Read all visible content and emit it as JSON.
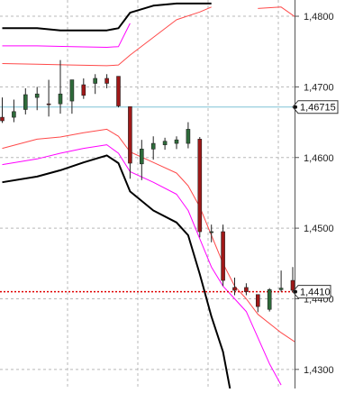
{
  "chart_data": {
    "type": "candlestick",
    "title": "",
    "xlabel": "",
    "ylabel": "",
    "ylim": [
      1.4273,
      1.4823
    ],
    "y_ticks": [
      "1,4800",
      "1,4700",
      "1,4600",
      "1,4500",
      "1,4400",
      "1,4300"
    ],
    "y_tick_values": [
      1.48,
      1.47,
      1.46,
      1.45,
      1.44,
      1.43
    ],
    "grid": true,
    "horizontal_levels": [
      {
        "value": 1.46715,
        "label": "1,46715",
        "color": "#7fc3d6",
        "style": "solid"
      },
      {
        "value": 1.441,
        "label": "1,4410",
        "color": "#e00000",
        "style": "dotted"
      }
    ],
    "colors": {
      "bull_body": "#2e6b3a",
      "bear_body": "#a01818",
      "wick": "#222222",
      "band_outer": "#000000",
      "band_middle": "#ff00ff",
      "band_inner": "#ff4a4a",
      "grid": "#b8b8b8",
      "axis": "#555555"
    },
    "candles": [
      {
        "open": 1.4657,
        "high": 1.4685,
        "low": 1.4649,
        "close": 1.4652
      },
      {
        "open": 1.4657,
        "high": 1.4682,
        "low": 1.465,
        "close": 1.4665
      },
      {
        "open": 1.4668,
        "high": 1.4698,
        "low": 1.4661,
        "close": 1.4689
      },
      {
        "open": 1.4685,
        "high": 1.47,
        "low": 1.4667,
        "close": 1.469
      },
      {
        "open": 1.4676,
        "high": 1.471,
        "low": 1.4658,
        "close": 1.4675
      },
      {
        "open": 1.4676,
        "high": 1.4738,
        "low": 1.4662,
        "close": 1.469
      },
      {
        "open": 1.468,
        "high": 1.4706,
        "low": 1.4662,
        "close": 1.471
      },
      {
        "open": 1.4703,
        "high": 1.4712,
        "low": 1.4683,
        "close": 1.4688
      },
      {
        "open": 1.4705,
        "high": 1.4718,
        "low": 1.469,
        "close": 1.4712
      },
      {
        "open": 1.4712,
        "high": 1.4718,
        "low": 1.4698,
        "close": 1.4705
      },
      {
        "open": 1.4715,
        "high": 1.4715,
        "low": 1.4671,
        "close": 1.4673
      },
      {
        "open": 1.4672,
        "high": 1.4672,
        "low": 1.457,
        "close": 1.4592
      },
      {
        "open": 1.4591,
        "high": 1.4625,
        "low": 1.4568,
        "close": 1.4612
      },
      {
        "open": 1.4612,
        "high": 1.463,
        "low": 1.4597,
        "close": 1.462
      },
      {
        "open": 1.4618,
        "high": 1.4628,
        "low": 1.4611,
        "close": 1.4623
      },
      {
        "open": 1.462,
        "high": 1.463,
        "low": 1.4612,
        "close": 1.4625
      },
      {
        "open": 1.462,
        "high": 1.465,
        "low": 1.4613,
        "close": 1.464
      },
      {
        "open": 1.4626,
        "high": 1.4629,
        "low": 1.4487,
        "close": 1.4495
      },
      {
        "open": 1.4495,
        "high": 1.4505,
        "low": 1.448,
        "close": 1.4495
      },
      {
        "open": 1.4495,
        "high": 1.4505,
        "low": 1.4418,
        "close": 1.4426
      },
      {
        "open": 1.4416,
        "high": 1.443,
        "low": 1.4405,
        "close": 1.4412
      },
      {
        "open": 1.4416,
        "high": 1.4422,
        "low": 1.4405,
        "close": 1.441
      },
      {
        "open": 1.4406,
        "high": 1.4406,
        "low": 1.4381,
        "close": 1.4389
      },
      {
        "open": 1.4385,
        "high": 1.4415,
        "low": 1.4382,
        "close": 1.4413
      },
      {
        "open": 1.4413,
        "high": 1.444,
        "low": 1.441,
        "close": 1.4415
      },
      {
        "open": 1.4426,
        "high": 1.4445,
        "low": 1.441,
        "close": 1.4412
      },
      {
        "open": 1.4412,
        "high": 1.4412,
        "low": 1.4328,
        "close": 1.4378
      },
      {
        "open": 1.4383,
        "high": 1.4394,
        "low": 1.4381,
        "close": 1.4387
      },
      {
        "open": 1.4376,
        "high": 1.4391,
        "low": 1.4354,
        "close": 1.439
      },
      {
        "open": 1.4386,
        "high": 1.4413,
        "low": 1.4383,
        "close": 1.441
      }
    ],
    "bands": [
      {
        "name": "",
        "color": "#000000",
        "width": 2,
        "points": [
          [
            0,
            1.4783
          ],
          [
            3,
            1.4783
          ],
          [
            5,
            1.478
          ],
          [
            7,
            1.478
          ],
          [
            9,
            1.478
          ],
          [
            10,
            1.4783
          ],
          [
            11,
            1.4805
          ],
          [
            13,
            1.4815
          ],
          [
            15,
            1.4818
          ],
          [
            17,
            1.4818
          ],
          [
            18,
            1.4818
          ]
        ]
      },
      {
        "name": "",
        "color": "#ff00ff",
        "width": 1,
        "points": [
          [
            0,
            1.4758
          ],
          [
            3,
            1.4758
          ],
          [
            6,
            1.4757
          ],
          [
            9,
            1.4756
          ],
          [
            10,
            1.4757
          ],
          [
            11,
            1.479
          ]
        ]
      },
      {
        "name": "",
        "color": "#ff00ff",
        "width": 1,
        "points": [
          [
            28.7,
            1.48
          ],
          [
            29.2,
            1.4775
          ]
        ]
      },
      {
        "name": "",
        "color": "#ff4a4a",
        "width": 1,
        "points": [
          [
            0,
            1.4733
          ],
          [
            3,
            1.4732
          ],
          [
            6,
            1.4731
          ],
          [
            9,
            1.473
          ],
          [
            10,
            1.4731
          ],
          [
            11,
            1.4745
          ],
          [
            13,
            1.477
          ],
          [
            15,
            1.4795
          ],
          [
            17,
            1.4806
          ],
          [
            18,
            1.4813
          ]
        ]
      },
      {
        "name": "",
        "color": "#ff4a4a",
        "width": 1,
        "points": [
          [
            22,
            1.4811
          ],
          [
            24,
            1.4813
          ],
          [
            26,
            1.479
          ],
          [
            28,
            1.4748
          ],
          [
            30,
            1.47
          ]
        ]
      },
      {
        "name": "",
        "color": "#ff4a4a",
        "width": 1,
        "points": [
          [
            0,
            1.4613
          ],
          [
            3,
            1.4626
          ],
          [
            5,
            1.4629
          ],
          [
            7,
            1.4635
          ],
          [
            9,
            1.464
          ],
          [
            10,
            1.463
          ],
          [
            11,
            1.4608
          ],
          [
            13,
            1.4593
          ],
          [
            15,
            1.4578
          ],
          [
            16,
            1.456
          ],
          [
            17,
            1.453
          ],
          [
            18,
            1.449
          ],
          [
            19,
            1.445
          ],
          [
            20,
            1.4418
          ],
          [
            21,
            1.44
          ],
          [
            22,
            1.4378
          ],
          [
            24,
            1.4352
          ],
          [
            26,
            1.433
          ],
          [
            28,
            1.431
          ],
          [
            30,
            1.4285
          ]
        ]
      },
      {
        "name": "",
        "color": "#ff00ff",
        "width": 1,
        "points": [
          [
            0,
            1.459
          ],
          [
            3,
            1.4598
          ],
          [
            5,
            1.4606
          ],
          [
            7,
            1.4613
          ],
          [
            9,
            1.4618
          ],
          [
            10,
            1.4606
          ],
          [
            11,
            1.458
          ],
          [
            13,
            1.4565
          ],
          [
            15,
            1.4548
          ],
          [
            16,
            1.4525
          ],
          [
            17,
            1.4485
          ],
          [
            18,
            1.4445
          ],
          [
            19,
            1.4418
          ],
          [
            20,
            1.44
          ],
          [
            21,
            1.4382
          ],
          [
            22,
            1.4345
          ],
          [
            23,
            1.4308
          ],
          [
            24,
            1.4278
          ]
        ]
      },
      {
        "name": "",
        "color": "#000000",
        "width": 2,
        "points": [
          [
            0,
            1.4565
          ],
          [
            3,
            1.4573
          ],
          [
            5,
            1.4582
          ],
          [
            7,
            1.4593
          ],
          [
            9,
            1.4603
          ],
          [
            10,
            1.4592
          ],
          [
            11,
            1.4552
          ],
          [
            13,
            1.4525
          ],
          [
            15,
            1.4508
          ],
          [
            16,
            1.449
          ],
          [
            17,
            1.4435
          ],
          [
            18,
            1.4375
          ],
          [
            19,
            1.4325
          ],
          [
            19.6,
            1.4273
          ]
        ]
      }
    ]
  }
}
